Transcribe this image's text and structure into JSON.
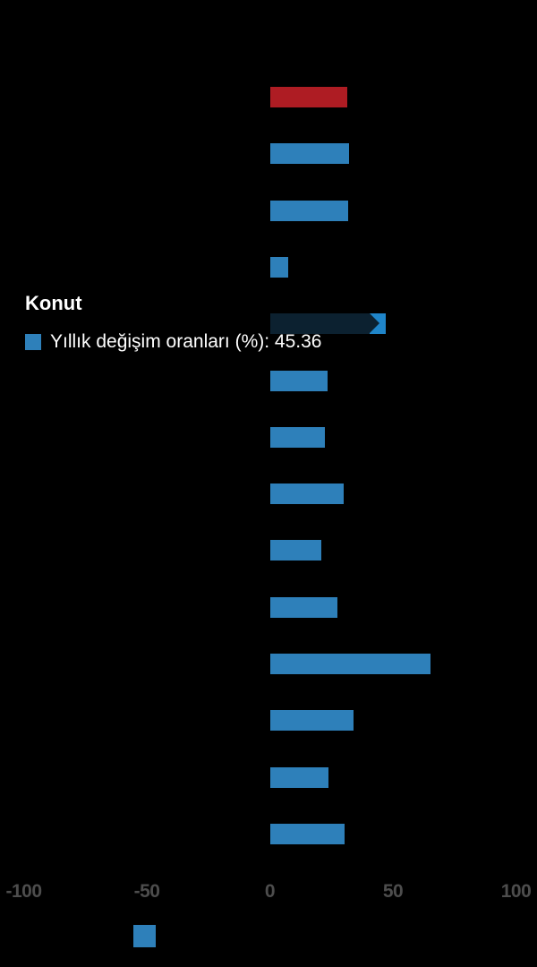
{
  "colors": {
    "background": "#000000",
    "bar_blue": "#2e80ba",
    "bar_red": "#ae1c23",
    "active_bar": "#0c2130",
    "arrow_blue": "#1f85c9",
    "tick_gray": "#4d4d4d",
    "text_white": "#ffffff"
  },
  "tooltip": {
    "title": "Konut",
    "series_label": "Yıllık değişim oranları (%)",
    "separator": ": ",
    "value": "45.36"
  },
  "chart_data": {
    "type": "bar",
    "orientation": "horizontal",
    "series_name": "Yıllık değişim oranları (%)",
    "xlim": [
      -100,
      100
    ],
    "x_ticks": [
      -100,
      -50,
      0,
      50,
      100
    ],
    "grid": false,
    "legend_position": "bottom",
    "note": "Category labels are not visible in the screenshot; only the hovered bar's category (Konut) is shown via tooltip.",
    "bars": [
      {
        "value": 31.5,
        "color": "red"
      },
      {
        "value": 32.0,
        "color": "blue"
      },
      {
        "value": 31.8,
        "color": "blue"
      },
      {
        "value": 7.6,
        "color": "blue"
      },
      {
        "value": 45.36,
        "color": "blue",
        "label": "Konut",
        "highlighted": true
      },
      {
        "value": 23.6,
        "color": "blue"
      },
      {
        "value": 22.3,
        "color": "blue"
      },
      {
        "value": 30.0,
        "color": "blue"
      },
      {
        "value": 20.9,
        "color": "blue"
      },
      {
        "value": 27.3,
        "color": "blue"
      },
      {
        "value": 65.3,
        "color": "blue"
      },
      {
        "value": 34.0,
        "color": "blue"
      },
      {
        "value": 23.7,
        "color": "blue"
      },
      {
        "value": 30.4,
        "color": "blue"
      }
    ]
  }
}
